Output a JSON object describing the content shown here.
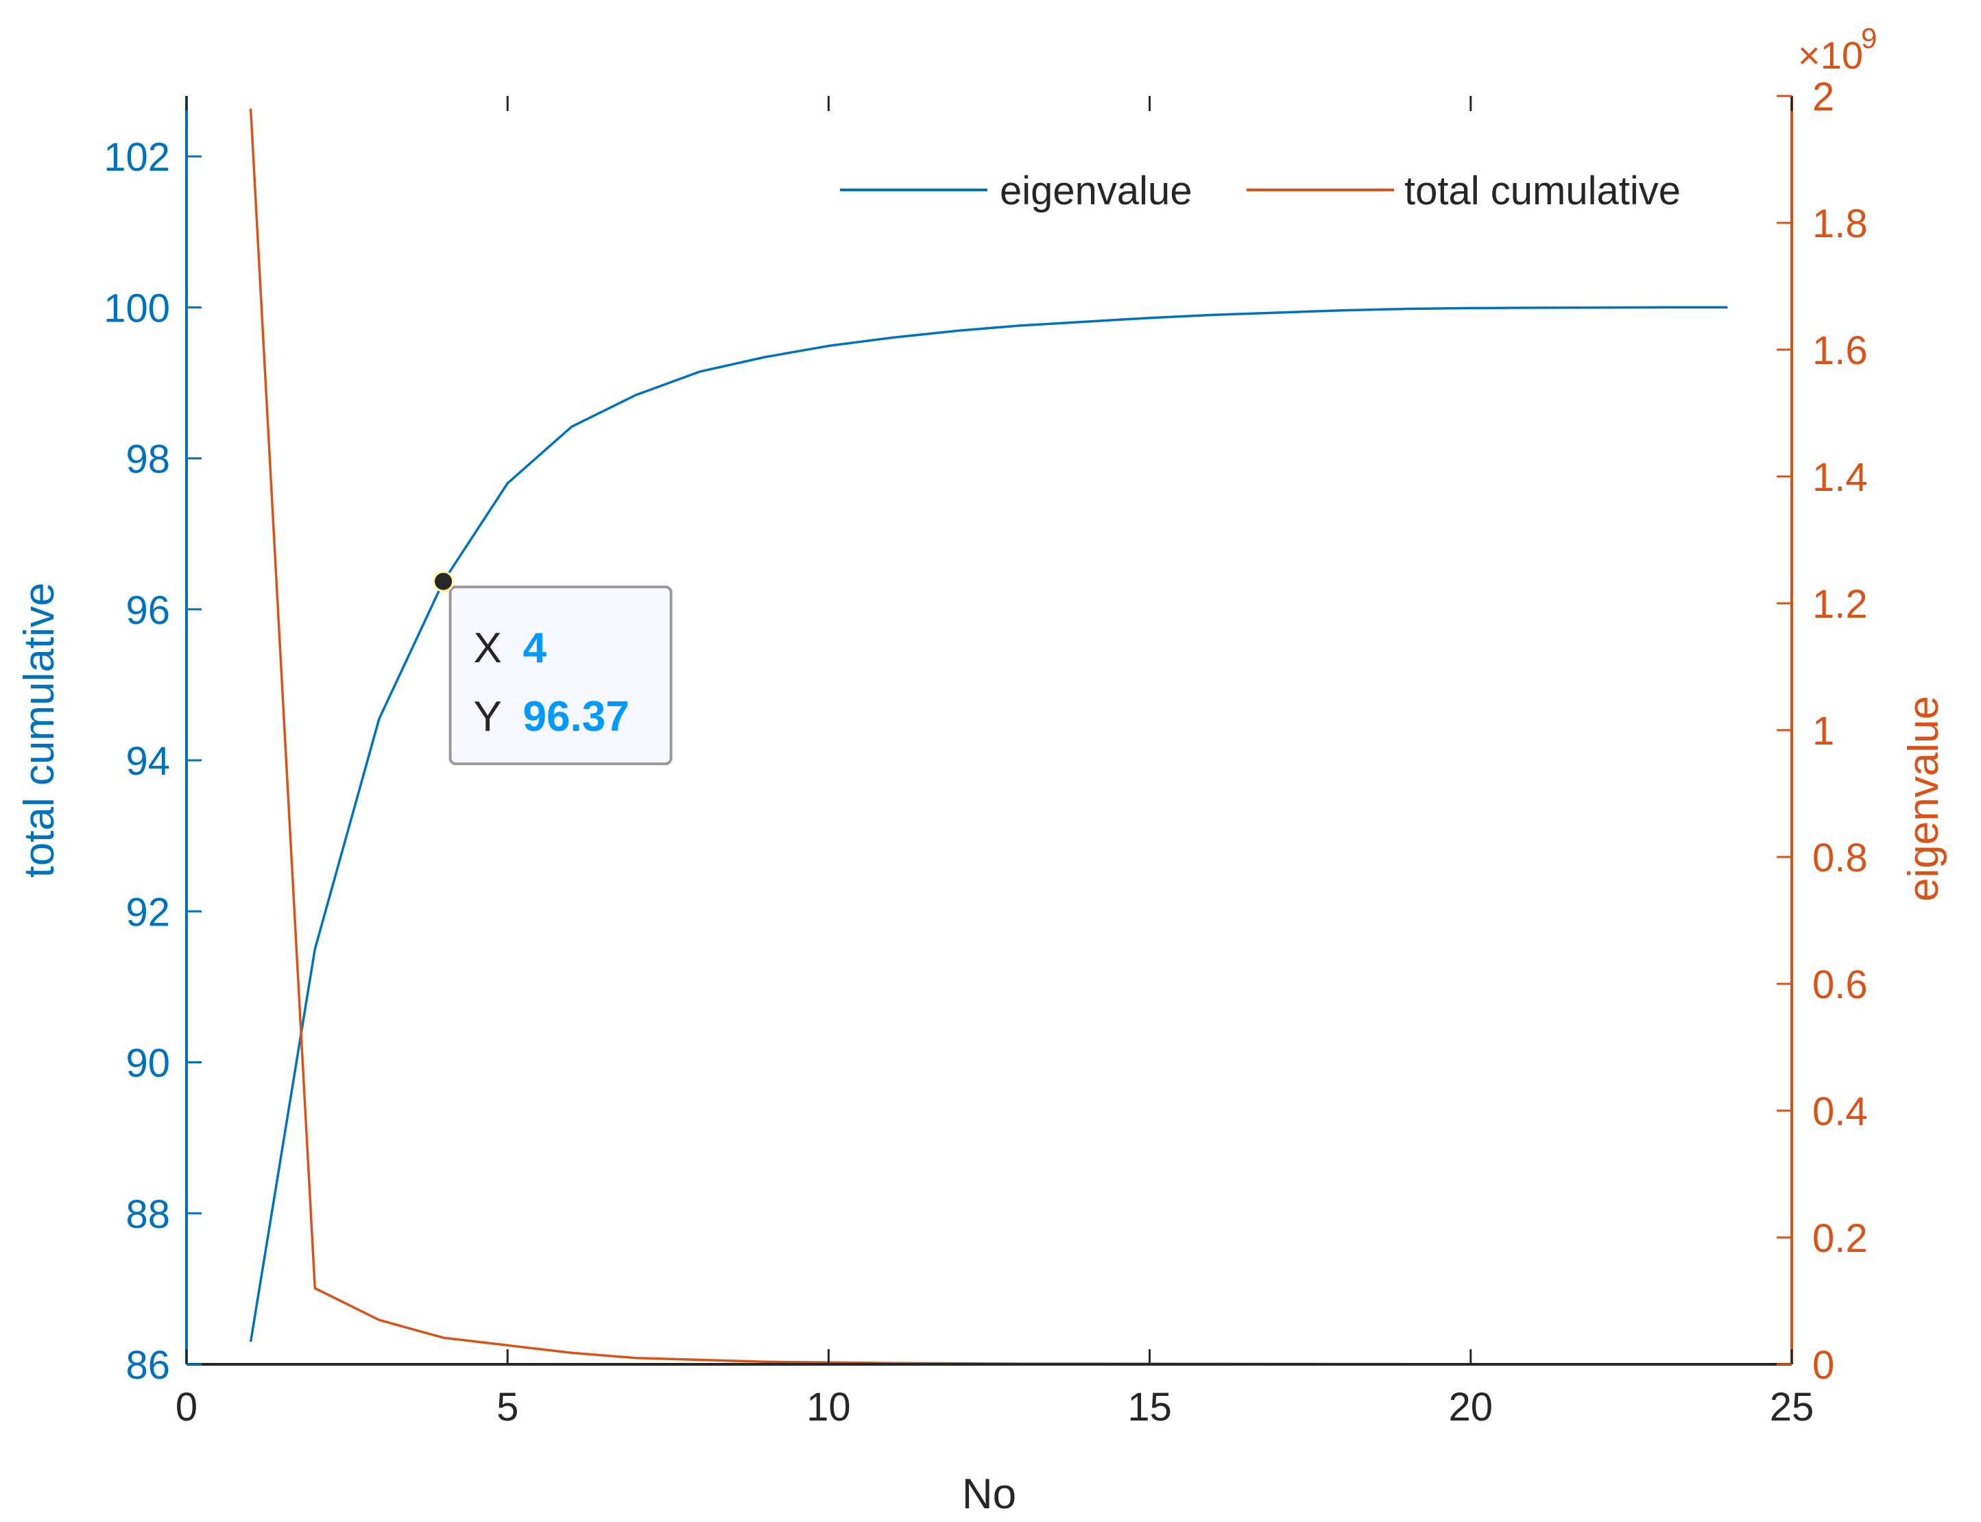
{
  "chart_data": {
    "type": "line",
    "xlabel": "No",
    "ylabel_left": "total cumulative",
    "ylabel_right": "eigenvalue",
    "right_axis_exponent_label": "×10",
    "right_axis_exponent_power": "9",
    "xlim": [
      0,
      25
    ],
    "ylim_left": [
      86,
      102.8
    ],
    "ylim_right": [
      0,
      2
    ],
    "xticks": [
      0,
      5,
      10,
      15,
      20,
      25
    ],
    "yticks_left": [
      86,
      88,
      90,
      92,
      94,
      96,
      98,
      100,
      102
    ],
    "yticks_right": [
      0,
      0.2,
      0.4,
      0.6,
      0.8,
      1,
      1.2,
      1.4,
      1.6,
      1.8,
      2
    ],
    "yticklabels_right": [
      "0",
      "0.2",
      "0.4",
      "0.6",
      "0.8",
      "1",
      "1.2",
      "1.4",
      "1.6",
      "1.8",
      "2"
    ],
    "grid": false,
    "legend_position": "top-right",
    "colors": {
      "blue": "#0072BD",
      "orange": "#D95319",
      "datatip_value": "#0099FF"
    },
    "series": [
      {
        "name": "eigenvalue",
        "axis": "left",
        "color": "#0072BD",
        "x": [
          1,
          2,
          3,
          4,
          5,
          6,
          7,
          8,
          9,
          10,
          11,
          12,
          13,
          14,
          15,
          16,
          17,
          18,
          19,
          20,
          21,
          22,
          23,
          24
        ],
        "values": [
          86.3,
          91.5,
          94.55,
          96.37,
          97.67,
          98.42,
          98.84,
          99.15,
          99.34,
          99.49,
          99.6,
          99.69,
          99.76,
          99.81,
          99.86,
          99.9,
          99.93,
          99.96,
          99.98,
          99.99,
          99.995,
          99.998,
          100,
          100
        ]
      },
      {
        "name": "total cumulative",
        "axis": "right",
        "color": "#D95319",
        "x": [
          1,
          2,
          3,
          4,
          5,
          6,
          7,
          8,
          9,
          10,
          11,
          12,
          13,
          14,
          15,
          16,
          17,
          18,
          19,
          20,
          21,
          22,
          23,
          24
        ],
        "values": [
          1.98,
          0.12,
          0.07,
          0.042,
          0.03,
          0.018,
          0.01,
          0.007,
          0.004,
          0.003,
          0.002,
          0.0015,
          0.001,
          0.001,
          0.0008,
          0.0006,
          0.0005,
          0.0004,
          0.0003,
          0.0003,
          0.0002,
          0.0001,
          0.0001,
          0.0001
        ]
      }
    ],
    "datatip": {
      "x_label": "X",
      "x_value": "4",
      "y_label": "Y",
      "y_value": "96.37",
      "point_x": 4,
      "point_y": 96.37
    }
  }
}
